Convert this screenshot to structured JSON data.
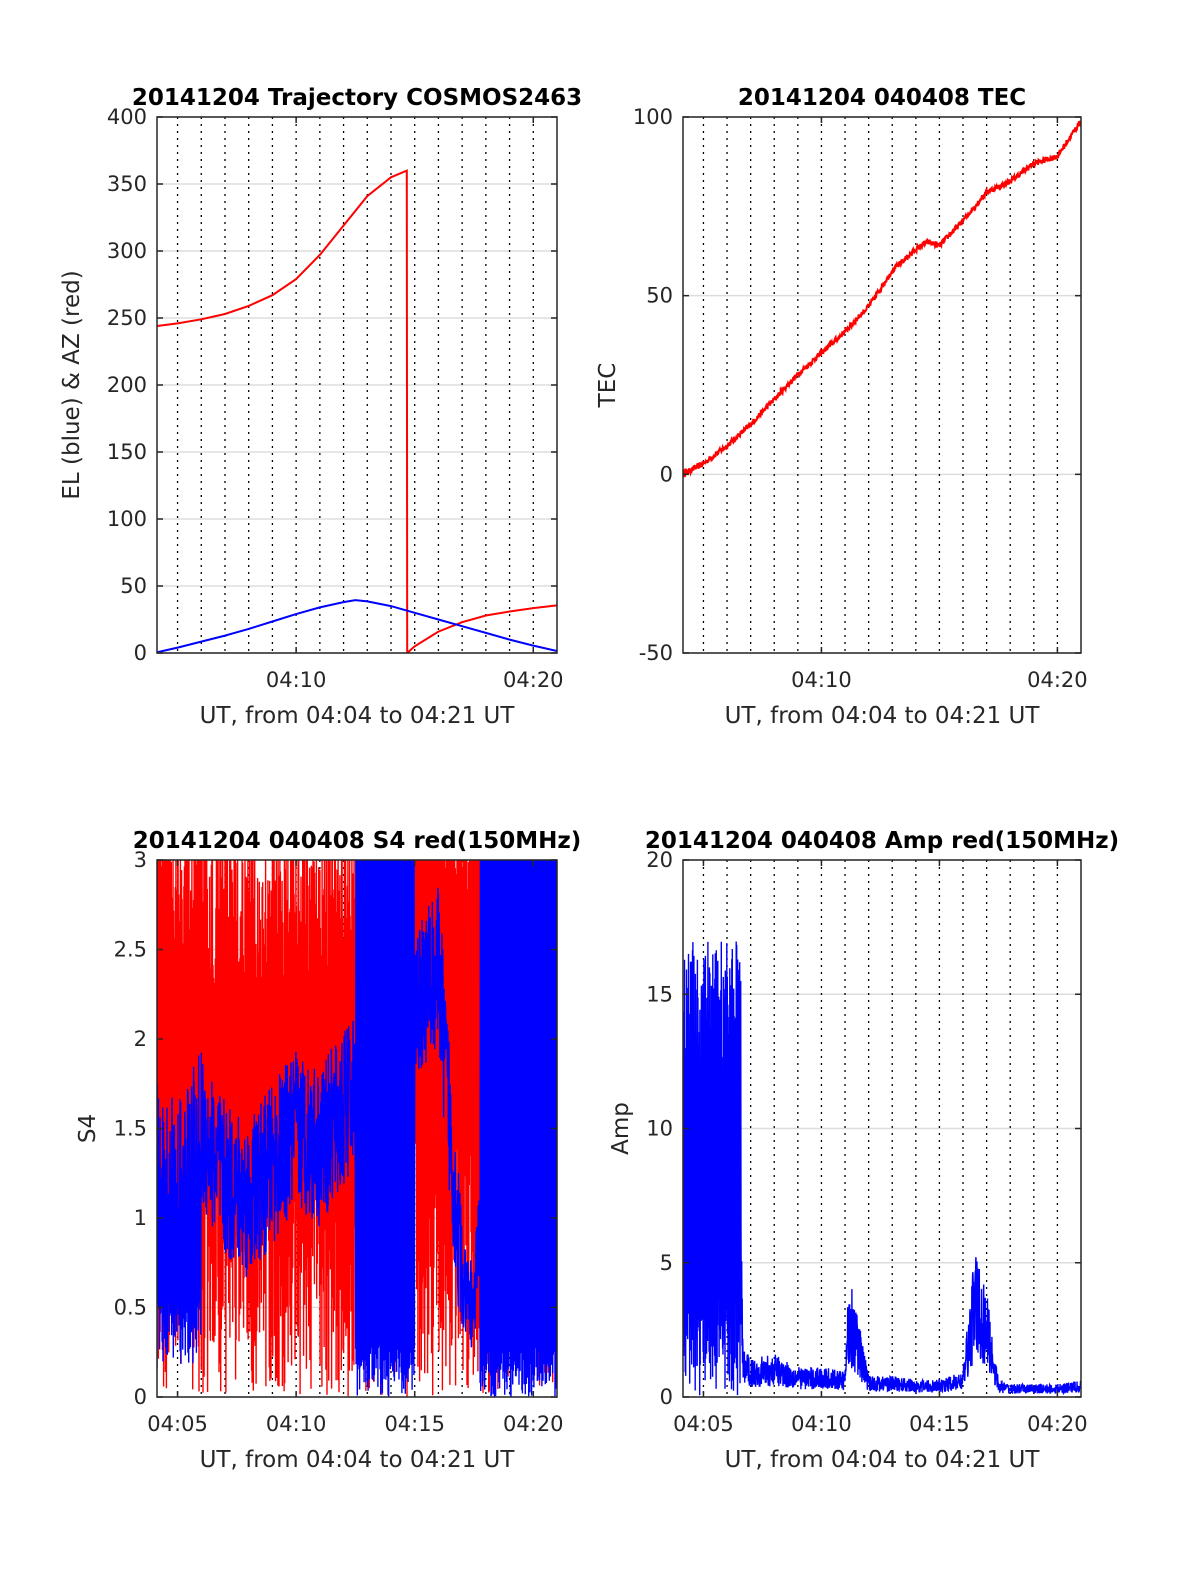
{
  "figure": {
    "background": "#ffffff",
    "colors": {
      "el": "#0000ff",
      "az": "#ff0000",
      "grid": "#dddddd",
      "vline": "#000000"
    }
  },
  "chart_data": [
    {
      "id": "trajectory",
      "type": "line",
      "title": "20141204 Trajectory COSMOS2463",
      "xlabel": "UT, from 04:04 to 04:21 UT",
      "ylabel": "EL (blue) & AZ (red)",
      "xlim": [
        "04:04:08",
        "04:21:00"
      ],
      "ylim": [
        0,
        400
      ],
      "yticks": [
        "0",
        "50",
        "100",
        "150",
        "200",
        "250",
        "300",
        "350",
        "400"
      ],
      "xticks": [
        "04:10",
        "04:20"
      ],
      "grid": true,
      "series": [
        {
          "color": "#ff0000",
          "style": "az",
          "x": [
            "04:04:08",
            "04:05:00",
            "04:06:00",
            "04:07:00",
            "04:08:00",
            "04:09:00",
            "04:10:00",
            "04:11:00",
            "04:12:00",
            "04:13:00",
            "04:14:00",
            "04:14:40",
            "04:14:41",
            "04:15:00",
            "04:16:00",
            "04:17:00",
            "04:18:00",
            "04:19:00",
            "04:20:00",
            "04:21:00"
          ],
          "values": [
            244,
            246,
            249,
            253,
            259,
            267,
            279,
            297,
            319,
            341,
            355,
            360,
            0,
            5,
            16,
            23,
            28,
            31,
            33.5,
            35.5
          ]
        },
        {
          "color": "#0000ff",
          "style": "el",
          "x": [
            "04:04:08",
            "04:05:00",
            "04:06:00",
            "04:07:00",
            "04:08:00",
            "04:09:00",
            "04:10:00",
            "04:11:00",
            "04:12:00",
            "04:12:30",
            "04:13:00",
            "04:14:00",
            "04:15:00",
            "04:16:00",
            "04:17:00",
            "04:18:00",
            "04:19:00",
            "04:20:00",
            "04:21:00"
          ],
          "values": [
            0.5,
            4,
            8.5,
            13,
            18,
            23.5,
            29,
            34,
            38,
            39.5,
            38.5,
            35,
            30,
            25,
            20,
            15,
            10,
            5.5,
            1.5
          ]
        }
      ]
    },
    {
      "id": "tec",
      "type": "line",
      "title": "20141204 040408 TEC",
      "xlabel": "UT, from 04:04 to 04:21 UT",
      "ylabel": "TEC",
      "xlim": [
        "04:04:08",
        "04:21:00"
      ],
      "ylim": [
        -50,
        100
      ],
      "yticks": [
        "-50",
        "0",
        "50",
        "100"
      ],
      "xticks": [
        "04:10",
        "04:20"
      ],
      "grid": true,
      "series": [
        {
          "color": "#ff0000",
          "style": "line",
          "noise": 0.8,
          "x": [
            "04:04:08",
            "04:05:00",
            "04:06:00",
            "04:07:00",
            "04:08:00",
            "04:09:00",
            "04:10:00",
            "04:11:00",
            "04:12:00",
            "04:13:00",
            "04:14:00",
            "04:14:30",
            "04:15:00",
            "04:16:00",
            "04:17:00",
            "04:18:00",
            "04:19:00",
            "04:20:00",
            "04:21:00"
          ],
          "values": [
            0,
            3,
            8,
            14,
            21,
            28,
            34,
            40,
            47,
            57,
            63,
            65,
            64,
            71,
            79,
            82,
            87,
            89,
            99
          ]
        }
      ]
    },
    {
      "id": "s4",
      "type": "line",
      "title": "20141204 040408 S4 red(150MHz)",
      "xlabel": "UT, from 04:04 to 04:21 UT",
      "ylabel": "S4",
      "xlim": [
        "04:04:08",
        "04:21:00"
      ],
      "ylim": [
        0,
        3
      ],
      "yticks": [
        "0",
        "0.5",
        "1",
        "1.5",
        "2",
        "2.5",
        "3"
      ],
      "xticks": [
        "04:05",
        "04:10",
        "04:15",
        "04:20"
      ],
      "grid": true,
      "series": [
        {
          "color": "#ff0000",
          "style": "s4red",
          "x": [
            "04:04:08",
            "04:05:00",
            "04:06:00",
            "04:07:00",
            "04:08:00",
            "04:09:00",
            "04:10:00",
            "04:11:00",
            "04:12:00",
            "04:13:00",
            "04:14:00",
            "04:15:00",
            "04:16:00",
            "04:17:00",
            "04:18:00",
            "04:19:00",
            "04:20:00",
            "04:21:00"
          ],
          "values": [
            2.6,
            2.5,
            2.4,
            2.2,
            2.1,
            2.2,
            2.4,
            2.3,
            2.2,
            2.5,
            2.6,
            2.8,
            2.8,
            2.7,
            2.9,
            3.0,
            3.0,
            3.0
          ]
        },
        {
          "color": "#0000ff",
          "style": "s4blue",
          "x": [
            "04:04:08",
            "04:05:00",
            "04:06:00",
            "04:07:00",
            "04:08:00",
            "04:09:00",
            "04:10:00",
            "04:11:00",
            "04:12:00",
            "04:13:00",
            "04:14:00",
            "04:15:00",
            "04:16:00",
            "04:17:00",
            "04:17:30",
            "04:18:00",
            "04:19:00",
            "04:20:00",
            "04:21:00"
          ],
          "values": [
            1.3,
            1.2,
            1.5,
            1.2,
            1.1,
            1.3,
            1.5,
            1.4,
            1.6,
            1.8,
            2.0,
            2.2,
            2.4,
            0.6,
            0.5,
            1.5,
            1.5,
            1.5,
            1.5
          ]
        }
      ]
    },
    {
      "id": "amp",
      "type": "line",
      "title": "20141204 040408 Amp red(150MHz)",
      "xlabel": "UT, from 04:04 to 04:21 UT",
      "ylabel": "Amp",
      "xlim": [
        "04:04:08",
        "04:21:00"
      ],
      "ylim": [
        0,
        20
      ],
      "yticks": [
        "0",
        "5",
        "10",
        "15",
        "20"
      ],
      "xticks": [
        "04:05",
        "04:10",
        "04:15",
        "04:20"
      ],
      "grid": true,
      "series": [
        {
          "color": "#0000ff",
          "style": "amp",
          "x": [
            "04:04:08",
            "04:05:00",
            "04:06:00",
            "04:06:30",
            "04:06:40",
            "04:07:00",
            "04:08:00",
            "04:09:00",
            "04:10:00",
            "04:11:00",
            "04:11:10",
            "04:12:00",
            "04:13:00",
            "04:14:00",
            "04:15:00",
            "04:16:00",
            "04:16:30",
            "04:17:00",
            "04:17:30",
            "04:18:00",
            "04:19:00",
            "04:20:00",
            "04:21:00"
          ],
          "values": [
            9,
            8.5,
            8.5,
            9,
            1.2,
            0.9,
            1.0,
            0.7,
            0.7,
            0.6,
            3.0,
            0.5,
            0.5,
            0.4,
            0.4,
            0.6,
            3.5,
            2.5,
            0.4,
            0.3,
            0.3,
            0.3,
            0.4
          ]
        }
      ]
    }
  ]
}
